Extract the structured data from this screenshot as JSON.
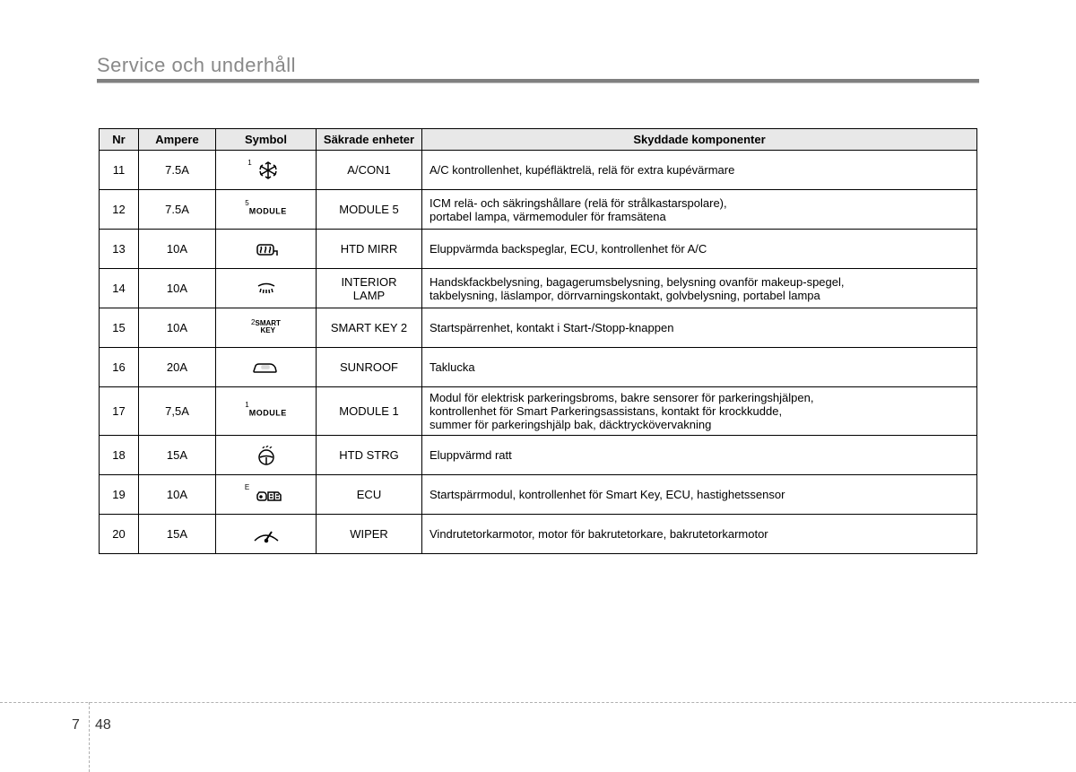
{
  "page": {
    "title": "Service och underhåll",
    "chapter": "7",
    "number": "48"
  },
  "table": {
    "headers": {
      "nr": "Nr",
      "ampere": "Ampere",
      "symbol": "Symbol",
      "secured": "Säkrade enheter",
      "components": "Skyddade komponenter"
    },
    "rows": [
      {
        "nr": "11",
        "ampere": "7.5A",
        "symbolType": "snowflake",
        "symbolSup": "1",
        "secured": "A/CON1",
        "components": "A/C kontrollenhet, kupéfläktrelä, relä för extra kupévärmare"
      },
      {
        "nr": "12",
        "ampere": "7.5A",
        "symbolType": "text",
        "symbolSup": "5",
        "symbolText": "MODULE",
        "secured": "MODULE 5",
        "components": "ICM relä- och säkringshållare (relä för strålkastarspolare),\nportabel lampa, värmemoduler för framsätena"
      },
      {
        "nr": "13",
        "ampere": "10A",
        "symbolType": "defrost",
        "secured": "HTD MIRR",
        "components": "Eluppvärmda backspeglar, ECU, kontrollenhet för A/C"
      },
      {
        "nr": "14",
        "ampere": "10A",
        "symbolType": "domelight",
        "secured": "INTERIOR LAMP",
        "components": "Handskfackbelysning, bagagerumsbelysning, belysning ovanför makeup-spegel,\ntakbelysning, läslampor, dörrvarningskontakt, golvbelysning, portabel lampa"
      },
      {
        "nr": "15",
        "ampere": "10A",
        "symbolType": "text-stack",
        "symbolSup": "2",
        "symbolText": "SMART",
        "symbolText2": "KEY",
        "secured": "SMART KEY 2",
        "components": "Startspärrenhet, kontakt i Start-/Stopp-knappen"
      },
      {
        "nr": "16",
        "ampere": "20A",
        "symbolType": "car",
        "secured": "SUNROOF",
        "components": "Taklucka"
      },
      {
        "nr": "17",
        "ampere": "7,5A",
        "symbolType": "text",
        "symbolSup": "1",
        "symbolText": "MODULE",
        "secured": "MODULE 1",
        "components": "Modul för elektrisk parkeringsbroms, bakre sensorer för parkeringshjälpen,\nkontrollenhet för Smart Parkeringsassistans, kontakt för krockkudde,\nsummer för parkeringshjälp bak, däcktryckövervakning"
      },
      {
        "nr": "18",
        "ampere": "15A",
        "symbolType": "steering",
        "secured": "HTD STRG",
        "components": "Eluppvärmd ratt"
      },
      {
        "nr": "19",
        "ampere": "10A",
        "symbolType": "ecu",
        "symbolSup": "E",
        "secured": "ECU",
        "components": "Startspärrmodul, kontrollenhet för Smart Key, ECU, hastighetssensor"
      },
      {
        "nr": "20",
        "ampere": "15A",
        "symbolType": "wiper",
        "secured": "WIPER",
        "components": "Vindrutetorkarmotor, motor för bakrutetorkare, bakrutetorkarmotor"
      }
    ]
  }
}
